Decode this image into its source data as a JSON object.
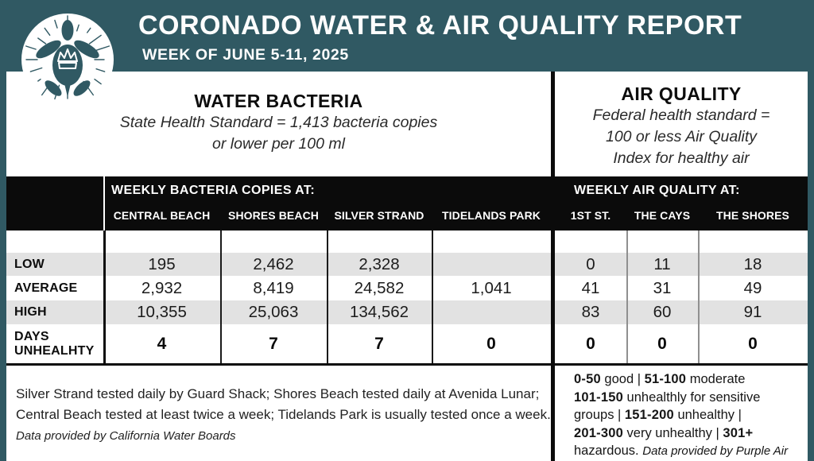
{
  "colors": {
    "teal": "#305963",
    "band_black": "#0b0b0b",
    "row_stripe": "#e2e2e2",
    "panel_white": "#ffffff"
  },
  "header": {
    "title": "CORONADO WATER & AIR QUALITY REPORT",
    "subtitle": "WEEK OF JUNE 5-11, 2025",
    "logo": "turtle-with-crown-sunburst"
  },
  "water_section": {
    "title": "WATER BACTERIA",
    "standard_line1": "State Health Standard  = 1,413 bacteria copies",
    "standard_line2": "or lower per 100 ml"
  },
  "air_section": {
    "title": "AIR QUALITY",
    "standard_line1": "Federal health standard =",
    "standard_line2": "100 or less Air Quality",
    "standard_line3": "Index for healthy air"
  },
  "table": {
    "water": {
      "group_header": "WEEKLY BACTERIA COPIES AT:",
      "columns": [
        "CENTRAL BEACH",
        "SHORES BEACH",
        "SILVER STRAND",
        "TIDELANDS PARK"
      ]
    },
    "air": {
      "group_header": "WEEKLY AIR QUALITY AT:",
      "columns": [
        "1ST ST.",
        "THE CAYS",
        "THE SHORES"
      ]
    },
    "rows": [
      {
        "label": "LOW",
        "water": [
          "195",
          "2,462",
          "2,328",
          ""
        ],
        "air": [
          "0",
          "11",
          "18"
        ],
        "bold": false,
        "shaded": true
      },
      {
        "label": "AVERAGE",
        "water": [
          "2,932",
          "8,419",
          "24,582",
          "1,041"
        ],
        "air": [
          "41",
          "31",
          "49"
        ],
        "bold": false,
        "shaded": false
      },
      {
        "label": "HIGH",
        "water": [
          "10,355",
          "25,063",
          "134,562",
          ""
        ],
        "air": [
          "83",
          "60",
          "91"
        ],
        "bold": false,
        "shaded": true
      },
      {
        "label": "DAYS UNHEALHTY",
        "water": [
          "4",
          "7",
          "7",
          "0"
        ],
        "air": [
          "0",
          "0",
          "0"
        ],
        "bold": true,
        "shaded": false
      }
    ]
  },
  "footnotes": {
    "water_note_segments": [
      {
        "text": "Silver Strand tested daily by Guard Shack; Shores Beach tested daily at Avenida Lunar; Central Beach tested at least twice a week; Tidelands Park is usually tested once a week. "
      },
      {
        "text": "Data provided by California Water Boards",
        "italic": true
      }
    ],
    "air_scale_segments": [
      {
        "text": "0-50",
        "bold": true
      },
      {
        "text": " good | "
      },
      {
        "text": "51-100",
        "bold": true
      },
      {
        "text": " moderate"
      },
      {
        "br": true
      },
      {
        "text": "101-150",
        "bold": true
      },
      {
        "text": " unhealthly for sensitive"
      },
      {
        "br": true
      },
      {
        "text": "groups | "
      },
      {
        "text": "151-200",
        "bold": true
      },
      {
        "text": " unhealthy |"
      },
      {
        "br": true
      },
      {
        "text": "201-300",
        "bold": true
      },
      {
        "text": " very unhealthy | "
      },
      {
        "text": "301+",
        "bold": true
      },
      {
        "br": true
      },
      {
        "text": "hazardous. "
      },
      {
        "text": "Data provided by Purple Air",
        "italic": true
      }
    ]
  },
  "chart_data": [
    {
      "type": "table",
      "title": "WEEKLY BACTERIA COPIES AT",
      "standard": "State Health Standard = 1,413 bacteria copies or lower per 100 ml",
      "columns": [
        "CENTRAL BEACH",
        "SHORES BEACH",
        "SILVER STRAND",
        "TIDELANDS PARK"
      ],
      "row_labels": [
        "LOW",
        "AVERAGE",
        "HIGH",
        "DAYS UNHEALHTY"
      ],
      "values": [
        [
          195,
          2462,
          2328,
          null
        ],
        [
          2932,
          8419,
          24582,
          1041
        ],
        [
          10355,
          25063,
          134562,
          null
        ],
        [
          4,
          7,
          7,
          0
        ]
      ]
    },
    {
      "type": "table",
      "title": "WEEKLY AIR QUALITY AT",
      "standard": "Federal health standard = 100 or less Air Quality Index for healthy air",
      "columns": [
        "1ST ST.",
        "THE CAYS",
        "THE SHORES"
      ],
      "row_labels": [
        "LOW",
        "AVERAGE",
        "HIGH",
        "DAYS UNHEALHTY"
      ],
      "values": [
        [
          0,
          11,
          18
        ],
        [
          41,
          31,
          49
        ],
        [
          83,
          60,
          91
        ],
        [
          0,
          0,
          0
        ]
      ]
    }
  ]
}
